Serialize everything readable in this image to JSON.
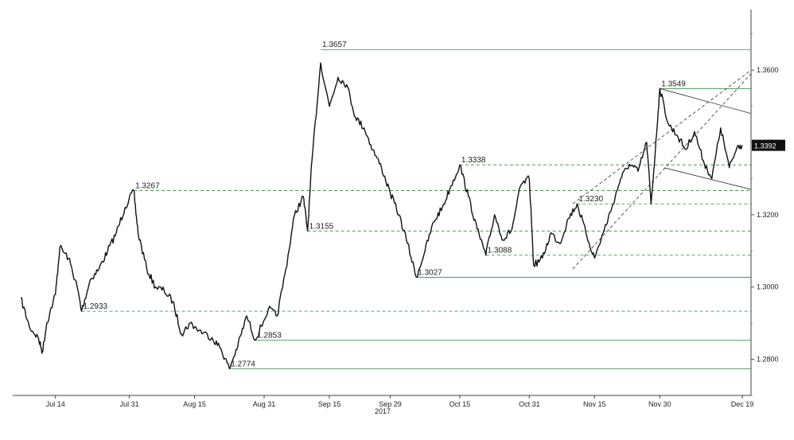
{
  "chart_data": {
    "type": "line",
    "year_label": "2017",
    "x_ticks": [
      "Jul 14",
      "Jul 31",
      "Aug 15",
      "Aug 31",
      "Sep 15",
      "Sep 29",
      "Oct 15",
      "Oct 31",
      "Nov 15",
      "Nov 30",
      "Dec 19"
    ],
    "y_ticks": [
      "1.2800",
      "1.3000",
      "1.3200",
      "1.3400",
      "1.3600"
    ],
    "ylim": [
      1.27,
      1.375
    ],
    "last_price_label": "1.3392",
    "series": [
      {
        "points": [
          [
            "Jul 6",
            1.297
          ],
          [
            "Jul 8",
            1.289
          ],
          [
            "Jul 10",
            1.286
          ],
          [
            "Jul 11",
            1.282
          ],
          [
            "Jul 12",
            1.29
          ],
          [
            "Jul 14",
            1.298
          ],
          [
            "Jul 15",
            1.311
          ],
          [
            "Jul 17",
            1.308
          ],
          [
            "Jul 19",
            1.3
          ],
          [
            "Jul 20",
            1.2933
          ],
          [
            "Jul 22",
            1.302
          ],
          [
            "Jul 24",
            1.305
          ],
          [
            "Jul 26",
            1.31
          ],
          [
            "Jul 28",
            1.315
          ],
          [
            "Jul 30",
            1.322
          ],
          [
            "Aug 1",
            1.3267
          ],
          [
            "Aug 2",
            1.315
          ],
          [
            "Aug 4",
            1.305
          ],
          [
            "Aug 6",
            1.3
          ],
          [
            "Aug 8",
            1.299
          ],
          [
            "Aug 10",
            1.296
          ],
          [
            "Aug 12",
            1.287
          ],
          [
            "Aug 14",
            1.29
          ],
          [
            "Aug 16",
            1.288
          ],
          [
            "Aug 19",
            1.286
          ],
          [
            "Aug 21",
            1.283
          ],
          [
            "Aug 23",
            1.2774
          ],
          [
            "Aug 25",
            1.284
          ],
          [
            "Aug 27",
            1.292
          ],
          [
            "Aug 29",
            1.2853
          ],
          [
            "Sep 1",
            1.294
          ],
          [
            "Sep 3",
            1.292
          ],
          [
            "Sep 5",
            1.305
          ],
          [
            "Sep 7",
            1.32
          ],
          [
            "Sep 9",
            1.325
          ],
          [
            "Sep 10",
            1.3155
          ],
          [
            "Sep 11",
            1.335
          ],
          [
            "Sep 13",
            1.362
          ],
          [
            "Sep 15",
            1.35
          ],
          [
            "Sep 17",
            1.358
          ],
          [
            "Sep 19",
            1.356
          ],
          [
            "Sep 21",
            1.347
          ],
          [
            "Sep 23",
            1.344
          ],
          [
            "Sep 25",
            1.338
          ],
          [
            "Sep 27",
            1.333
          ],
          [
            "Sep 29",
            1.326
          ],
          [
            "Oct 1",
            1.32
          ],
          [
            "Oct 3",
            1.312
          ],
          [
            "Oct 5",
            1.3027
          ],
          [
            "Oct 7",
            1.31
          ],
          [
            "Oct 9",
            1.318
          ],
          [
            "Oct 11",
            1.322
          ],
          [
            "Oct 13",
            1.328
          ],
          [
            "Oct 15",
            1.3338
          ],
          [
            "Oct 17",
            1.325
          ],
          [
            "Oct 19",
            1.316
          ],
          [
            "Oct 21",
            1.3088
          ],
          [
            "Oct 23",
            1.32
          ],
          [
            "Oct 25",
            1.313
          ],
          [
            "Oct 27",
            1.316
          ],
          [
            "Oct 29",
            1.328
          ],
          [
            "Oct 31",
            1.33
          ],
          [
            "Nov 1",
            1.306
          ],
          [
            "Nov 3",
            1.308
          ],
          [
            "Nov 5",
            1.315
          ],
          [
            "Nov 7",
            1.312
          ],
          [
            "Nov 9",
            1.319
          ],
          [
            "Nov 11",
            1.323
          ],
          [
            "Nov 13",
            1.315
          ],
          [
            "Nov 15",
            1.308
          ],
          [
            "Nov 17",
            1.315
          ],
          [
            "Nov 19",
            1.322
          ],
          [
            "Nov 21",
            1.33
          ],
          [
            "Nov 23",
            1.334
          ],
          [
            "Nov 25",
            1.332
          ],
          [
            "Nov 27",
            1.34
          ],
          [
            "Nov 28",
            1.323
          ],
          [
            "Nov 29",
            1.338
          ],
          [
            "Nov 30",
            1.3549
          ],
          [
            "Dec 2",
            1.345
          ],
          [
            "Dec 4",
            1.342
          ],
          [
            "Dec 6",
            1.338
          ],
          [
            "Dec 8",
            1.343
          ],
          [
            "Dec 10",
            1.335
          ],
          [
            "Dec 12",
            1.33
          ],
          [
            "Dec 14",
            1.344
          ],
          [
            "Dec 16",
            1.333
          ],
          [
            "Dec 18",
            1.3392
          ],
          [
            "Dec 19",
            1.3392
          ]
        ]
      }
    ],
    "annotations": [
      {
        "label": "1.3657",
        "value": 1.3657,
        "style": "solid"
      },
      {
        "label": "1.3549",
        "value": 1.3549,
        "style": "solid"
      },
      {
        "label": "1.3338",
        "value": 1.3338,
        "style": "dashed"
      },
      {
        "label": "1.3267",
        "value": 1.3267,
        "style": "dashed"
      },
      {
        "label": "1.3230",
        "value": 1.323,
        "style": "dashed"
      },
      {
        "label": "1.3155",
        "value": 1.3155,
        "style": "dashed"
      },
      {
        "label": "1.3088",
        "value": 1.3088,
        "style": "dashed"
      },
      {
        "label": "1.3027",
        "value": 1.3027,
        "style": "solid"
      },
      {
        "label": "1.2933",
        "value": 1.2933,
        "style": "dashed"
      },
      {
        "label": "1.2853",
        "value": 1.2853,
        "style": "solid"
      },
      {
        "label": "1.2774",
        "value": 1.2774,
        "style": "solid"
      }
    ],
    "grid": false
  }
}
